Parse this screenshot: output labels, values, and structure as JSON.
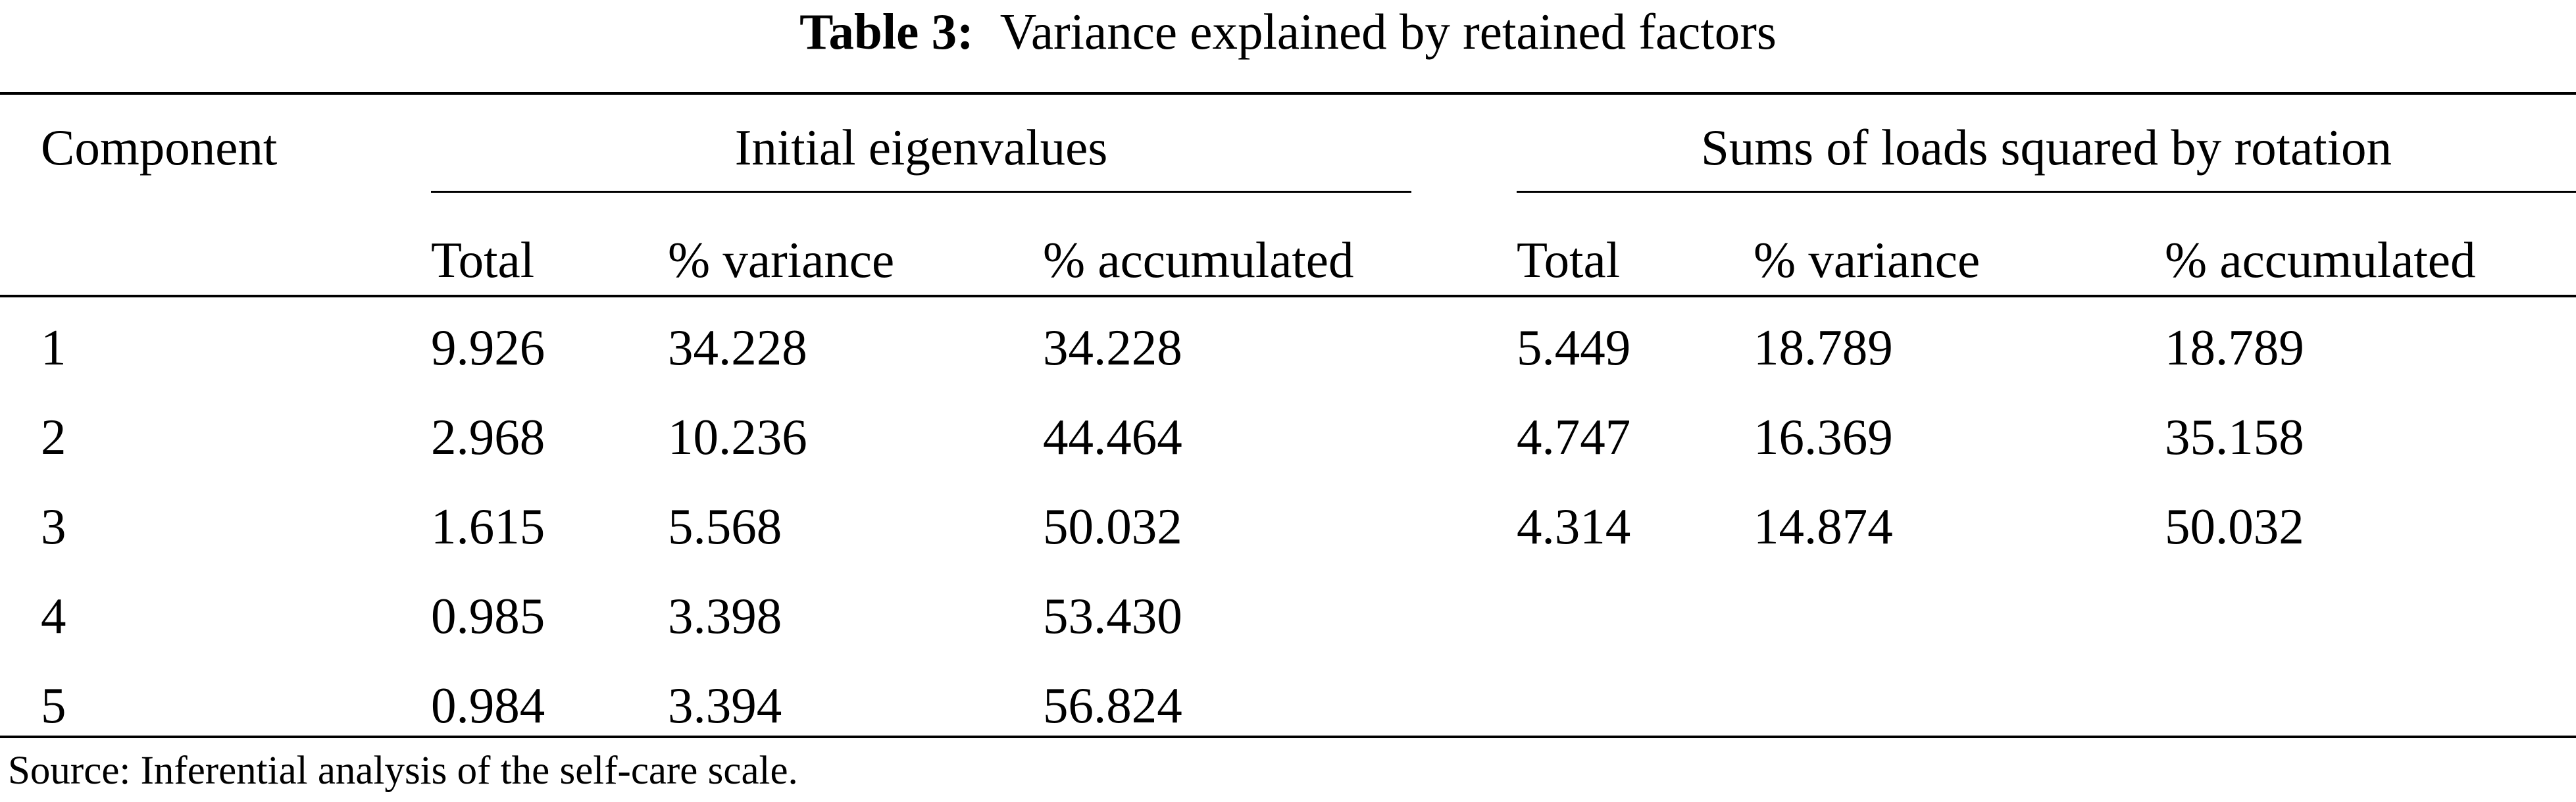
{
  "caption": {
    "label": "Table 3:",
    "text": "Variance explained by retained factors"
  },
  "header": {
    "component": "Component",
    "group_initial": "Initial eigenvalues",
    "group_rotation": "Sums of loads squared by rotation",
    "sub_columns": [
      "Total",
      "% variance",
      "% accumulated",
      "Total",
      "% variance",
      "% accumulated"
    ]
  },
  "rows": [
    [
      "1",
      "9.926",
      "34.228",
      "34.228",
      "5.449",
      "18.789",
      "18.789"
    ],
    [
      "2",
      "2.968",
      "10.236",
      "44.464",
      "4.747",
      "16.369",
      "35.158"
    ],
    [
      "3",
      "1.615",
      "5.568",
      "50.032",
      "4.314",
      "14.874",
      "50.032"
    ],
    [
      "4",
      "0.985",
      "3.398",
      "53.430",
      "",
      "",
      ""
    ],
    [
      "5",
      "0.984",
      "3.394",
      "56.824",
      "",
      "",
      ""
    ]
  ],
  "source": "Source: Inferential analysis of the self-care scale."
}
